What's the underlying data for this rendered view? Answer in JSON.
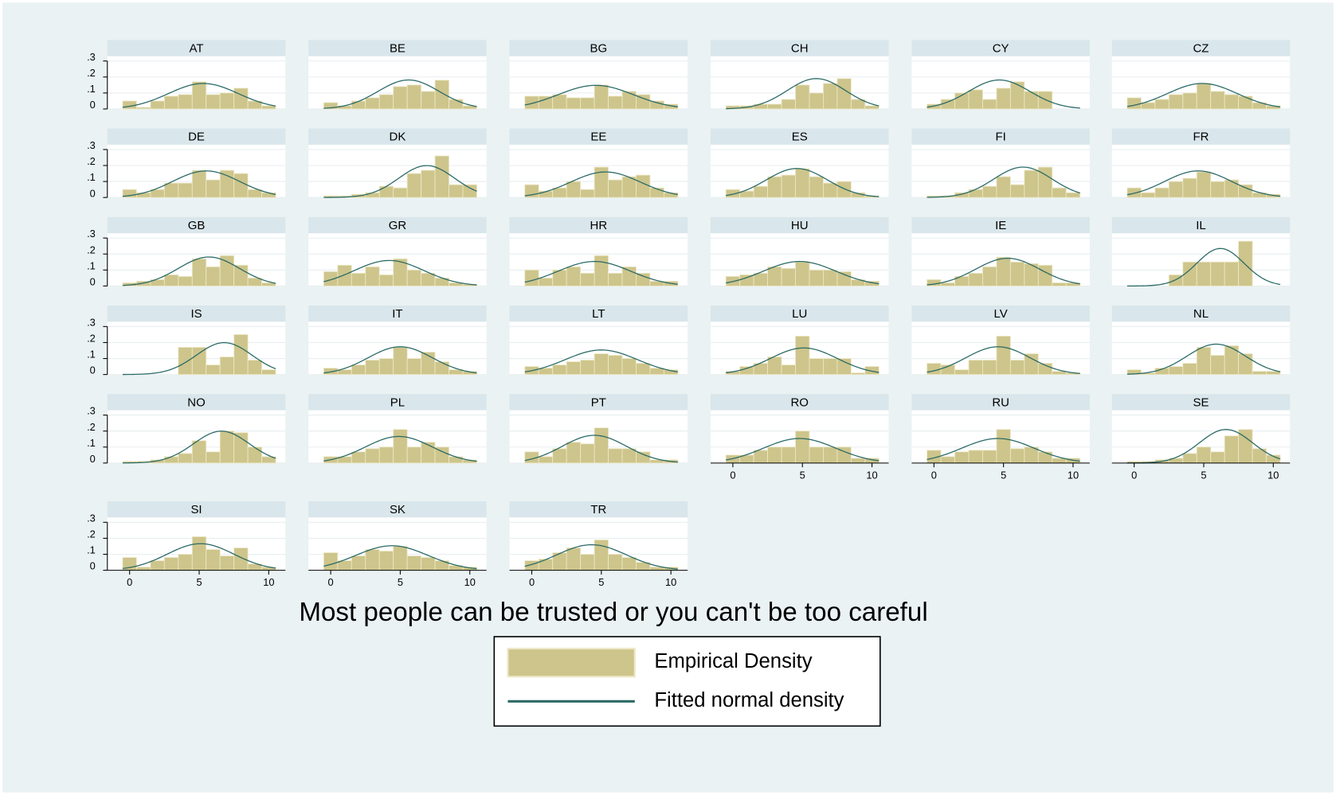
{
  "axes": {
    "bins": [
      -0.5,
      0.5,
      1.5,
      2.5,
      3.5,
      4.5,
      5.5,
      6.5,
      7.5,
      8.5,
      9.5,
      10.5
    ],
    "xlim": [
      -1.6,
      11.2
    ],
    "xticks": [
      0,
      5,
      10
    ],
    "ylim": [
      0,
      0.33
    ],
    "yticks": [
      {
        "value": 0,
        "label": "0"
      },
      {
        "value": 0.1,
        "label": ".1"
      },
      {
        "value": 0.2,
        "label": ".2"
      },
      {
        "value": 0.3,
        "label": ".3"
      }
    ],
    "grid": true
  },
  "chart_data": [
    {
      "type": "histogram",
      "title": "AT",
      "values": [
        0.05,
        0.01,
        0.05,
        0.08,
        0.09,
        0.17,
        0.09,
        0.1,
        0.13,
        0.05,
        0.02
      ],
      "fit": {
        "mean": 5.3,
        "sd": 2.5
      }
    },
    {
      "type": "histogram",
      "title": "BE",
      "values": [
        0.04,
        0.02,
        0.05,
        0.07,
        0.09,
        0.14,
        0.15,
        0.11,
        0.18,
        0.06,
        0.02
      ],
      "fit": {
        "mean": 5.6,
        "sd": 2.2
      }
    },
    {
      "type": "histogram",
      "title": "BG",
      "values": [
        0.08,
        0.08,
        0.09,
        0.07,
        0.07,
        0.15,
        0.08,
        0.11,
        0.09,
        0.05,
        0.03
      ],
      "fit": {
        "mean": 4.6,
        "sd": 2.7
      }
    },
    {
      "type": "histogram",
      "title": "CH",
      "values": [
        0.02,
        0.02,
        0.03,
        0.03,
        0.06,
        0.15,
        0.1,
        0.16,
        0.19,
        0.06,
        0.02
      ],
      "fit": {
        "mean": 6.0,
        "sd": 2.1
      }
    },
    {
      "type": "histogram",
      "title": "CY",
      "values": [
        0.03,
        0.06,
        0.1,
        0.12,
        0.06,
        0.13,
        0.17,
        0.11,
        0.11,
        0,
        0
      ],
      "fit": {
        "mean": 4.7,
        "sd": 2.2
      }
    },
    {
      "type": "histogram",
      "title": "CZ",
      "values": [
        0.07,
        0.04,
        0.06,
        0.09,
        0.1,
        0.16,
        0.11,
        0.09,
        0.08,
        0.04,
        0.02
      ],
      "fit": {
        "mean": 4.9,
        "sd": 2.5
      }
    },
    {
      "type": "histogram",
      "title": "DE",
      "values": [
        0.05,
        0.03,
        0.05,
        0.09,
        0.09,
        0.17,
        0.11,
        0.17,
        0.15,
        0.05,
        0.03
      ],
      "fit": {
        "mean": 5.5,
        "sd": 2.4
      }
    },
    {
      "type": "histogram",
      "title": "DK",
      "values": [
        0.01,
        0.01,
        0.02,
        0.03,
        0.07,
        0.06,
        0.15,
        0.17,
        0.26,
        0.08,
        0.08
      ],
      "fit": {
        "mean": 6.9,
        "sd": 2.0
      }
    },
    {
      "type": "histogram",
      "title": "EE",
      "values": [
        0.08,
        0.04,
        0.06,
        0.1,
        0.05,
        0.19,
        0.11,
        0.13,
        0.14,
        0.06,
        0.03
      ],
      "fit": {
        "mean": 5.3,
        "sd": 2.5
      }
    },
    {
      "type": "histogram",
      "title": "ES",
      "values": [
        0.05,
        0.04,
        0.07,
        0.13,
        0.14,
        0.18,
        0.13,
        0.09,
        0.1,
        0.03,
        0.01
      ],
      "fit": {
        "mean": 4.6,
        "sd": 2.2
      }
    },
    {
      "type": "histogram",
      "title": "FI",
      "values": [
        0.01,
        0.01,
        0.03,
        0.05,
        0.07,
        0.13,
        0.08,
        0.17,
        0.19,
        0.06,
        0.03
      ],
      "fit": {
        "mean": 6.4,
        "sd": 2.1
      }
    },
    {
      "type": "histogram",
      "title": "FR",
      "values": [
        0.06,
        0.03,
        0.06,
        0.1,
        0.12,
        0.16,
        0.1,
        0.11,
        0.08,
        0.03,
        0.02
      ],
      "fit": {
        "mean": 4.6,
        "sd": 2.4
      }
    },
    {
      "type": "histogram",
      "title": "GB",
      "values": [
        0.02,
        0.03,
        0.04,
        0.07,
        0.06,
        0.17,
        0.12,
        0.19,
        0.13,
        0.05,
        0.02
      ],
      "fit": {
        "mean": 5.7,
        "sd": 2.2
      }
    },
    {
      "type": "histogram",
      "title": "GR",
      "values": [
        0.09,
        0.13,
        0.08,
        0.12,
        0.07,
        0.17,
        0.1,
        0.08,
        0.05,
        0.02,
        0.01
      ],
      "fit": {
        "mean": 4.2,
        "sd": 2.5
      }
    },
    {
      "type": "histogram",
      "title": "HR",
      "values": [
        0.1,
        0.05,
        0.1,
        0.12,
        0.08,
        0.19,
        0.08,
        0.12,
        0.08,
        0.03,
        0.03
      ],
      "fit": {
        "mean": 4.5,
        "sd": 2.6
      }
    },
    {
      "type": "histogram",
      "title": "HU",
      "values": [
        0.06,
        0.07,
        0.08,
        0.12,
        0.11,
        0.15,
        0.1,
        0.1,
        0.09,
        0.04,
        0.03
      ],
      "fit": {
        "mean": 4.8,
        "sd": 2.6
      }
    },
    {
      "type": "histogram",
      "title": "IE",
      "values": [
        0.04,
        0.02,
        0.06,
        0.08,
        0.12,
        0.18,
        0.15,
        0.14,
        0.13,
        0.02,
        0.02
      ],
      "fit": {
        "mean": 5.3,
        "sd": 2.3
      }
    },
    {
      "type": "histogram",
      "title": "IL",
      "values": [
        0,
        0,
        0,
        0.07,
        0.15,
        0.15,
        0.15,
        0.15,
        0.28,
        0,
        0
      ],
      "fit": {
        "mean": 6.2,
        "sd": 1.7
      }
    },
    {
      "type": "histogram",
      "title": "IS",
      "values": [
        0,
        0,
        0,
        0,
        0.17,
        0.17,
        0.06,
        0.11,
        0.25,
        0.09,
        0.03
      ],
      "fit": {
        "mean": 6.8,
        "sd": 2.0
      }
    },
    {
      "type": "histogram",
      "title": "IT",
      "values": [
        0.04,
        0.03,
        0.06,
        0.09,
        0.1,
        0.17,
        0.1,
        0.14,
        0.08,
        0.03,
        0.02
      ],
      "fit": {
        "mean": 5.0,
        "sd": 2.3
      }
    },
    {
      "type": "histogram",
      "title": "LT",
      "values": [
        0.05,
        0.04,
        0.06,
        0.08,
        0.09,
        0.13,
        0.12,
        0.1,
        0.07,
        0.04,
        0.03
      ],
      "fit": {
        "mean": 5.0,
        "sd": 2.6
      }
    },
    {
      "type": "histogram",
      "title": "LU",
      "values": [
        0.02,
        0.05,
        0.07,
        0.11,
        0.06,
        0.24,
        0.1,
        0.1,
        0.1,
        0.01,
        0.05
      ],
      "fit": {
        "mean": 5.1,
        "sd": 2.4
      }
    },
    {
      "type": "histogram",
      "title": "LV",
      "values": [
        0.07,
        0.06,
        0.03,
        0.09,
        0.09,
        0.24,
        0.09,
        0.13,
        0.07,
        0.02,
        0.01
      ],
      "fit": {
        "mean": 4.6,
        "sd": 2.3
      }
    },
    {
      "type": "histogram",
      "title": "NL",
      "values": [
        0.03,
        0.01,
        0.04,
        0.05,
        0.07,
        0.17,
        0.12,
        0.18,
        0.13,
        0.02,
        0.02
      ],
      "fit": {
        "mean": 5.9,
        "sd": 2.1
      }
    },
    {
      "type": "histogram",
      "title": "NO",
      "values": [
        0.01,
        0.01,
        0.02,
        0.04,
        0.06,
        0.14,
        0.07,
        0.2,
        0.19,
        0.1,
        0.04
      ],
      "fit": {
        "mean": 6.6,
        "sd": 2.0
      }
    },
    {
      "type": "histogram",
      "title": "PL",
      "values": [
        0.04,
        0.04,
        0.07,
        0.09,
        0.1,
        0.21,
        0.1,
        0.13,
        0.1,
        0.04,
        0.02
      ],
      "fit": {
        "mean": 4.9,
        "sd": 2.4
      }
    },
    {
      "type": "histogram",
      "title": "PT",
      "values": [
        0.07,
        0.04,
        0.09,
        0.13,
        0.12,
        0.22,
        0.09,
        0.09,
        0.07,
        0.02,
        0.02
      ],
      "fit": {
        "mean": 4.5,
        "sd": 2.3
      }
    },
    {
      "type": "histogram",
      "title": "RO",
      "values": [
        0.05,
        0.05,
        0.08,
        0.1,
        0.1,
        0.2,
        0.1,
        0.1,
        0.1,
        0.03,
        0.03
      ],
      "fit": {
        "mean": 4.8,
        "sd": 2.6
      }
    },
    {
      "type": "histogram",
      "title": "RU",
      "values": [
        0.08,
        0.04,
        0.07,
        0.08,
        0.08,
        0.21,
        0.09,
        0.1,
        0.07,
        0.03,
        0.03
      ],
      "fit": {
        "mean": 4.6,
        "sd": 2.6
      }
    },
    {
      "type": "histogram",
      "title": "SE",
      "values": [
        0.01,
        0.01,
        0.02,
        0.03,
        0.06,
        0.1,
        0.07,
        0.17,
        0.21,
        0.09,
        0.05
      ],
      "fit": {
        "mean": 6.6,
        "sd": 1.9
      }
    },
    {
      "type": "histogram",
      "title": "SI",
      "values": [
        0.08,
        0.02,
        0.06,
        0.08,
        0.1,
        0.21,
        0.13,
        0.09,
        0.14,
        0.04,
        0.02
      ],
      "fit": {
        "mean": 5.1,
        "sd": 2.4
      }
    },
    {
      "type": "histogram",
      "title": "SK",
      "values": [
        0.11,
        0.06,
        0.09,
        0.13,
        0.12,
        0.15,
        0.09,
        0.08,
        0.06,
        0.03,
        0.02
      ],
      "fit": {
        "mean": 4.4,
        "sd": 2.6
      }
    },
    {
      "type": "histogram",
      "title": "TR",
      "values": [
        0.06,
        0.07,
        0.11,
        0.14,
        0.1,
        0.19,
        0.1,
        0.08,
        0.05,
        0.02,
        0.02
      ],
      "fit": {
        "mean": 4.3,
        "sd": 2.5
      }
    }
  ],
  "x_label": "Most people can be trusted or you can't be too careful",
  "legend": {
    "position": "bottom",
    "series": [
      {
        "name": "Empirical Density",
        "color": "#cdc58b"
      },
      {
        "name": "Fitted normal density",
        "color": "#2b6a66"
      }
    ]
  }
}
